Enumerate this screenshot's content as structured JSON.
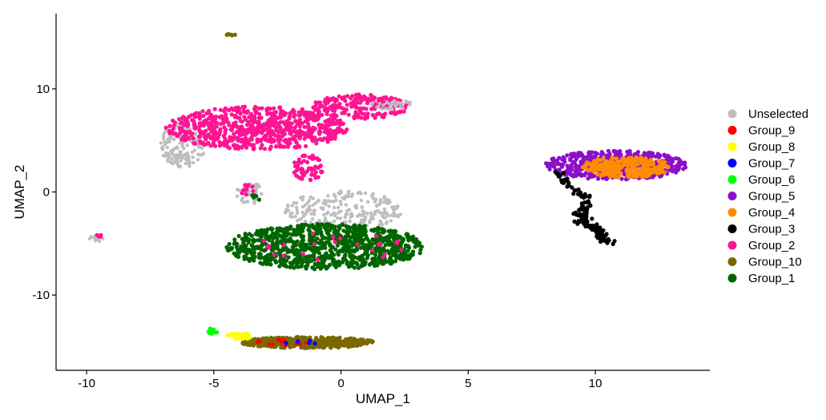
{
  "chart_data": {
    "type": "scatter",
    "title": "",
    "xlabel": "UMAP_1",
    "ylabel": "UMAP_2",
    "xlim": [
      -11.2,
      14.5
    ],
    "ylim": [
      -17.3,
      17.3
    ],
    "x_ticks": [
      -10,
      -5,
      0,
      5,
      10
    ],
    "y_ticks": [
      -10,
      0,
      10
    ],
    "grid": false,
    "legend_position": "right",
    "legend": [
      {
        "name": "Unselected",
        "color": "#BEBEBE"
      },
      {
        "name": "Group_9",
        "color": "#FF0000"
      },
      {
        "name": "Group_8",
        "color": "#FFFF00"
      },
      {
        "name": "Group_7",
        "color": "#0000FF"
      },
      {
        "name": "Group_6",
        "color": "#00FF00"
      },
      {
        "name": "Group_5",
        "color": "#8B10C8"
      },
      {
        "name": "Group_4",
        "color": "#FF8C00"
      },
      {
        "name": "Group_3",
        "color": "#000000"
      },
      {
        "name": "Group_2",
        "color": "#FF1493"
      },
      {
        "name": "Group_10",
        "color": "#7B6800"
      },
      {
        "name": "Group_1",
        "color": "#006400"
      }
    ],
    "clusters": [
      {
        "series": "Unselected",
        "shape": "ellipse",
        "cx": -6.2,
        "cy": 4.6,
        "rx": 0.9,
        "ry": 2.2,
        "n": 160
      },
      {
        "series": "Group_2",
        "shape": "ellipse",
        "cx": -3.3,
        "cy": 6.2,
        "rx": 3.6,
        "ry": 2.1,
        "n": 700
      },
      {
        "series": "Group_2",
        "shape": "ellipse",
        "cx": 0.8,
        "cy": 8.3,
        "rx": 1.9,
        "ry": 1.2,
        "n": 200
      },
      {
        "series": "Unselected",
        "shape": "ellipse",
        "cx": 2.0,
        "cy": 8.5,
        "rx": 0.8,
        "ry": 0.5,
        "n": 30
      },
      {
        "series": "Unselected",
        "shape": "ellipse",
        "cx": 0.1,
        "cy": -1.8,
        "rx": 2.3,
        "ry": 1.9,
        "n": 230
      },
      {
        "series": "Group_2",
        "shape": "ellipse",
        "cx": -1.3,
        "cy": 2.3,
        "rx": 0.6,
        "ry": 1.3,
        "n": 60
      },
      {
        "series": "Group_1",
        "shape": "ellipse",
        "cx": -0.6,
        "cy": -5.3,
        "rx": 3.9,
        "ry": 2.2,
        "n": 950
      },
      {
        "series": "Group_2",
        "shape": "ellipse",
        "cx": -0.4,
        "cy": -5.3,
        "rx": 3.0,
        "ry": 1.5,
        "n": 25
      },
      {
        "series": "Unselected",
        "shape": "ellipse",
        "cx": -3.6,
        "cy": -0.1,
        "rx": 0.5,
        "ry": 1.1,
        "n": 35
      },
      {
        "series": "Group_2",
        "shape": "ellipse",
        "cx": -3.7,
        "cy": 0.2,
        "rx": 0.25,
        "ry": 0.7,
        "n": 12
      },
      {
        "series": "Group_1",
        "shape": "ellipse",
        "cx": -3.4,
        "cy": -0.6,
        "rx": 0.4,
        "ry": 0.4,
        "n": 5
      },
      {
        "series": "Unselected",
        "shape": "ellipse",
        "cx": -9.6,
        "cy": -4.5,
        "rx": 0.35,
        "ry": 0.3,
        "n": 10
      },
      {
        "series": "Group_2",
        "shape": "ellipse",
        "cx": -9.5,
        "cy": -4.3,
        "rx": 0.15,
        "ry": 0.15,
        "n": 5
      },
      {
        "series": "Group_10",
        "shape": "ellipse",
        "cx": -4.3,
        "cy": 15.3,
        "rx": 0.2,
        "ry": 0.15,
        "n": 8
      },
      {
        "series": "Group_10",
        "shape": "ellipse",
        "cx": -1.3,
        "cy": -14.6,
        "rx": 2.6,
        "ry": 0.55,
        "n": 420
      },
      {
        "series": "Group_8",
        "shape": "ellipse",
        "cx": -4.0,
        "cy": -14.0,
        "rx": 0.5,
        "ry": 0.3,
        "n": 25
      },
      {
        "series": "Group_6",
        "shape": "ellipse",
        "cx": -5.1,
        "cy": -13.5,
        "rx": 0.25,
        "ry": 0.25,
        "n": 12
      },
      {
        "series": "Group_9",
        "shape": "ellipse",
        "cx": -2.4,
        "cy": -14.6,
        "rx": 1.2,
        "ry": 0.3,
        "n": 14
      },
      {
        "series": "Group_7",
        "shape": "ellipse",
        "cx": -1.6,
        "cy": -14.6,
        "rx": 0.8,
        "ry": 0.25,
        "n": 5
      },
      {
        "series": "Group_5",
        "shape": "ellipse",
        "cx": 10.8,
        "cy": 2.6,
        "rx": 2.8,
        "ry": 1.4,
        "n": 520
      },
      {
        "series": "Group_4",
        "shape": "ellipse",
        "cx": 11.2,
        "cy": 2.4,
        "rx": 1.8,
        "ry": 1.0,
        "n": 280
      },
      {
        "series": "Group_3",
        "shape": "path",
        "points": [
          [
            8.6,
            1.8
          ],
          [
            9.2,
            0.2
          ],
          [
            9.7,
            -0.8
          ],
          [
            9.4,
            -2.2
          ],
          [
            9.6,
            -3.0
          ],
          [
            10.2,
            -3.8
          ],
          [
            10.4,
            -4.9
          ]
        ],
        "spread": 0.14,
        "n": 140
      }
    ]
  }
}
